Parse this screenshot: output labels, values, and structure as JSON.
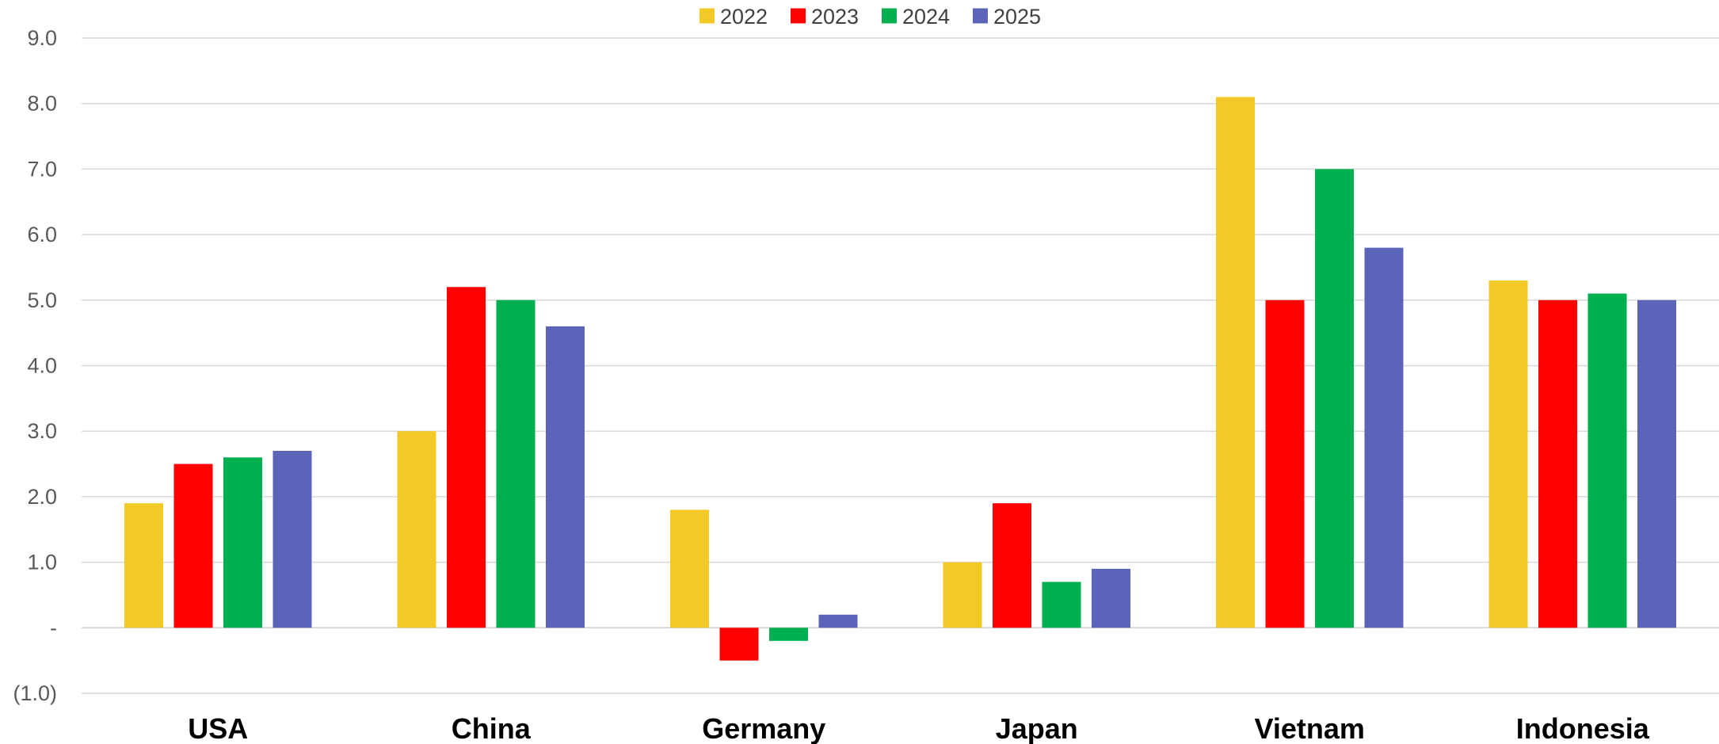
{
  "chart_data": {
    "type": "bar",
    "categories": [
      "USA",
      "China",
      "Germany",
      "Japan",
      "Vietnam",
      "Indonesia"
    ],
    "series": [
      {
        "name": "2022",
        "color": "#F2C927",
        "values": [
          1.9,
          3.0,
          1.8,
          1.0,
          8.1,
          5.3
        ]
      },
      {
        "name": "2023",
        "color": "#FF0000",
        "values": [
          2.5,
          5.2,
          -0.5,
          1.9,
          5.0,
          5.0
        ]
      },
      {
        "name": "2024",
        "color": "#00B050",
        "values": [
          2.6,
          5.0,
          -0.2,
          0.7,
          7.0,
          5.1
        ]
      },
      {
        "name": "2025",
        "color": "#5B64B8",
        "values": [
          2.7,
          4.6,
          0.2,
          0.9,
          5.8,
          5.0
        ]
      }
    ],
    "ylim": [
      -1,
      9
    ],
    "yticks": [
      9,
      8,
      7,
      6,
      5,
      4,
      3,
      2,
      1,
      0,
      -1
    ],
    "ytick_labels": [
      "9.0",
      "8.0",
      "7.0",
      "6.0",
      "5.0",
      "4.0",
      "3.0",
      "2.0",
      "1.0",
      "-",
      "(1.0)"
    ],
    "grid": true,
    "legend_position": "top-center",
    "title": "",
    "xlabel": "",
    "ylabel": ""
  }
}
